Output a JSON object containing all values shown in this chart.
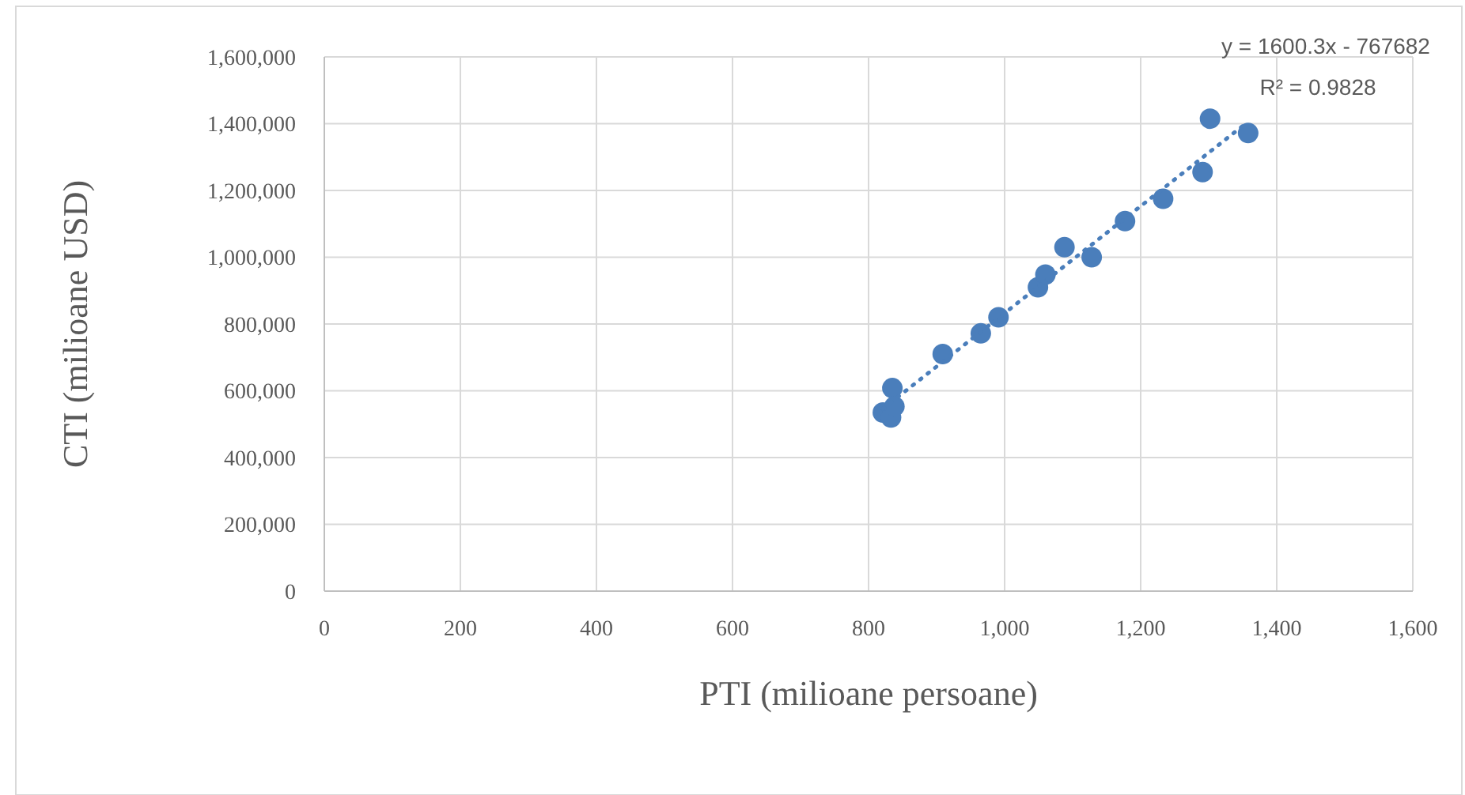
{
  "chart_data": {
    "type": "scatter",
    "xlabel": "PTI (milioane persoane)",
    "ylabel": "CTI (milioane USD)",
    "xlim": [
      0,
      1600
    ],
    "xticks": [
      0,
      {
        "value": 200,
        "label": "200"
      },
      {
        "value": 400,
        "label": "400"
      },
      {
        "value": 600,
        "label": "600"
      },
      {
        "value": 800,
        "label": "800"
      },
      {
        "value": 1000,
        "label": "1,000"
      },
      {
        "value": 1200,
        "label": "1,200"
      },
      {
        "value": 1400,
        "label": "1,400"
      },
      {
        "value": 1600,
        "label": "1,600"
      }
    ],
    "ylim": [
      0,
      1600000
    ],
    "yticks": [
      0,
      {
        "value": 200000,
        "label": "200,000"
      },
      {
        "value": 400000,
        "label": "400,000"
      },
      {
        "value": 600000,
        "label": "600,000"
      },
      {
        "value": 800000,
        "label": "800,000"
      },
      {
        "value": 1000000,
        "label": "1,000,000"
      },
      {
        "value": 1200000,
        "label": "1,200,000"
      },
      {
        "value": 1400000,
        "label": "1,400,000"
      },
      {
        "value": 1600000,
        "label": "1,600,000"
      }
    ],
    "grid": true,
    "annotations": [
      "y = 1600.3x - 767682",
      "R² = 0.9828"
    ],
    "series": [
      {
        "color": "#4a7ebb",
        "marker": "circle",
        "x": [
          835,
          821,
          833,
          838,
          909,
          965,
          991,
          1049,
          1060,
          1088,
          1128,
          1177,
          1233,
          1291,
          1302,
          1358
        ],
        "values": [
          608000,
          535000,
          520000,
          553000,
          710000,
          772000,
          820000,
          910000,
          948000,
          1030000,
          1000000,
          1108000,
          1175000,
          1255000,
          1415000,
          1372000
        ]
      },
      {
        "type": "line",
        "color": "#4a7ebb",
        "line_style": "dotted",
        "marker": "none",
        "x": [
          821,
          1358
        ],
        "values": [
          546000,
          1406000
        ]
      }
    ]
  }
}
